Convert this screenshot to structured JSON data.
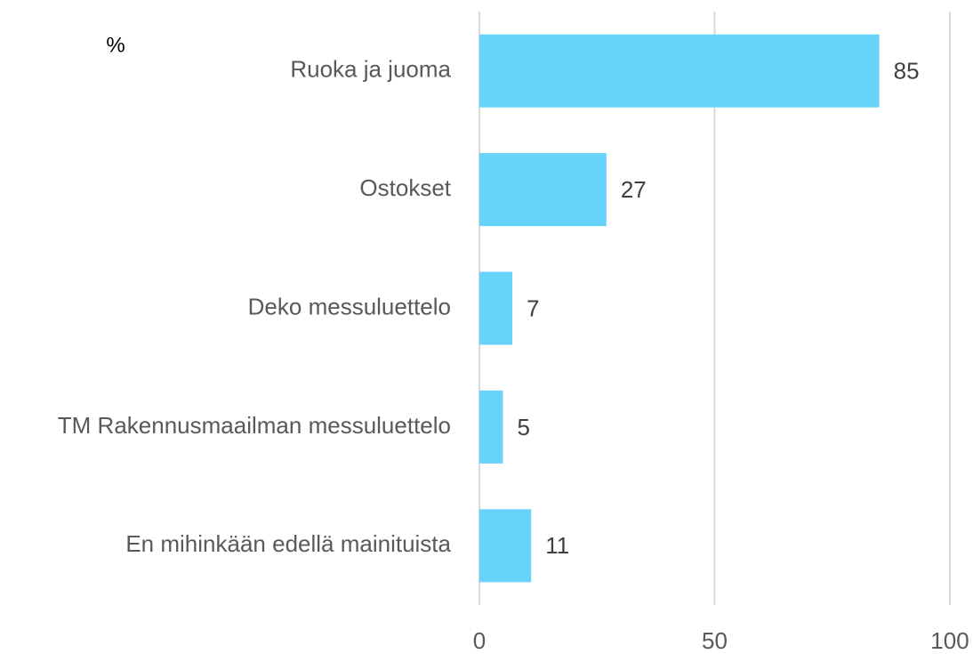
{
  "chart_data": {
    "type": "bar",
    "orientation": "horizontal",
    "axis_label": "%",
    "categories": [
      "Ruoka ja juoma",
      "Ostokset",
      "Deko messuluettelo",
      "TM Rakennusmaailman messuluettelo",
      "En mihinkään edellä mainituista"
    ],
    "values": [
      85,
      27,
      7,
      5,
      11
    ],
    "color": "#67d2fa",
    "xlim": [
      0,
      100
    ],
    "xticks": [
      0,
      50,
      100
    ],
    "grid": true
  }
}
